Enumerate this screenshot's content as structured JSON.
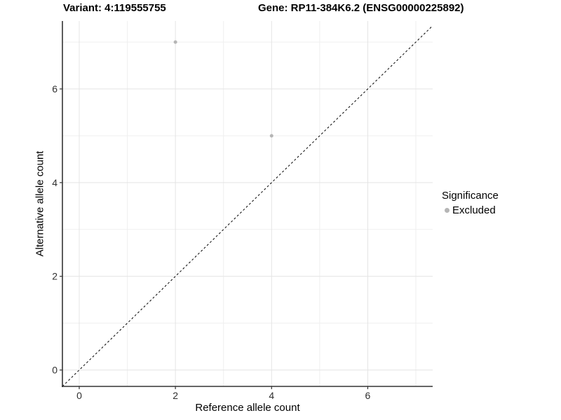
{
  "chart_data": {
    "type": "scatter",
    "title_left": "Variant: 4:119555755",
    "title_right": "Gene: RP11-384K6.2 (ENSG00000225892)",
    "xlabel": "Reference allele count",
    "ylabel": "Alternative allele count",
    "xlim": [
      -0.35,
      7.35
    ],
    "ylim": [
      -0.35,
      7.45
    ],
    "x_major_ticks": [
      0,
      2,
      4,
      6
    ],
    "y_major_ticks": [
      0,
      2,
      4,
      6
    ],
    "x_minor_ticks": [
      1,
      3,
      5,
      7
    ],
    "y_minor_ticks": [
      1,
      3,
      5,
      7
    ],
    "grid": "on",
    "series": [
      {
        "name": "Excluded",
        "color": "#b5b5b5",
        "points": [
          {
            "x": 2,
            "y": 7
          },
          {
            "x": 4,
            "y": 5
          }
        ]
      }
    ],
    "reference_line": {
      "slope": 1,
      "intercept": 0,
      "style": "dashed",
      "color": "#000000"
    },
    "legend": {
      "title": "Significance",
      "position": "right",
      "items": [
        {
          "label": "Excluded",
          "color": "#b5b5b5"
        }
      ]
    },
    "colors": {
      "grid_major": "#e4e4e4",
      "grid_minor": "#efefef",
      "axis_line": "#333333",
      "tick_mark": "#333333",
      "tick_label": "#303030"
    }
  }
}
